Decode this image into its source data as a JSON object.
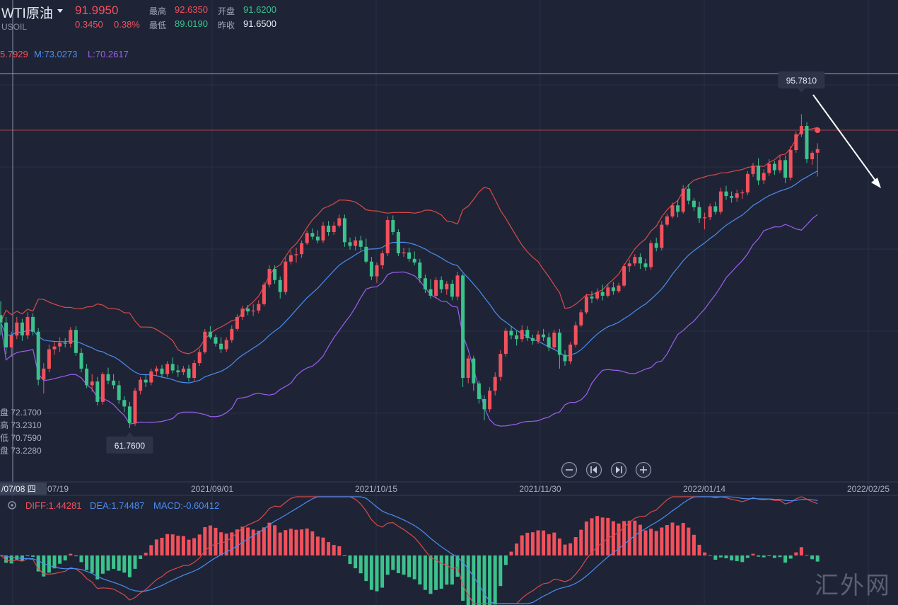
{
  "header": {
    "symbol": "WTI原油",
    "code": "USOIL",
    "last": "91.9950",
    "change": "0.3450",
    "change_pct": "0.38%",
    "high_label": "最高",
    "high": "92.6350",
    "open_label": "开盘",
    "open": "91.6200",
    "low_label": "最低",
    "low": "89.0190",
    "prev_label": "昨收",
    "prev_close": "91.6500"
  },
  "indicator": {
    "upper": "5.7929",
    "middle": "M:73.0273",
    "lower": "L:70.2617"
  },
  "crosshair": {
    "date": "/07/08 四",
    "open": "盘 72.1700",
    "high": "高 73.2310",
    "low": "低 70.7590",
    "close": "盘 73.2280"
  },
  "annotations": {
    "max": "95.7810",
    "min": "61.7600"
  },
  "macd_legend": {
    "diff": "DIFF:1.44281",
    "dea": "DEA:1.74487",
    "macd": "MACD:-0.60412"
  },
  "watermark": "汇外网",
  "colors": {
    "up": "#f2515c",
    "down": "#3cc28c",
    "mid": "#4c8df0",
    "lower": "#9d5ff0",
    "upper": "#d94a4a",
    "bg": "#1e2436"
  },
  "chart_data": {
    "type": "candlestick",
    "x_tick_labels": [
      "07/19",
      "2021/09/01",
      "2021/10/15",
      "2021/11/30",
      "2022/01/14",
      "2022/02/25"
    ],
    "candles_ohlc": [
      [
        74.0,
        75.5,
        71.8,
        73.2
      ],
      [
        73.2,
        73.8,
        69.8,
        70.5
      ],
      [
        70.5,
        72.2,
        69.5,
        71.8
      ],
      [
        71.8,
        73.8,
        71.4,
        73.2
      ],
      [
        73.2,
        73.6,
        71.2,
        71.8
      ],
      [
        71.8,
        74.3,
        71.4,
        73.8
      ],
      [
        73.8,
        74.2,
        71.8,
        72.2
      ],
      [
        72.2,
        72.6,
        66.4,
        67.0
      ],
      [
        67.0,
        68.8,
        65.5,
        68.2
      ],
      [
        68.2,
        70.8,
        67.8,
        70.3
      ],
      [
        70.3,
        71.2,
        69.7,
        70.6
      ],
      [
        70.6,
        71.6,
        70.0,
        71.0
      ],
      [
        71.0,
        71.5,
        70.5,
        70.9
      ],
      [
        70.9,
        72.7,
        70.5,
        72.4
      ],
      [
        72.4,
        72.8,
        69.6,
        69.9
      ],
      [
        69.9,
        70.4,
        67.8,
        68.2
      ],
      [
        68.2,
        68.7,
        66.1,
        66.4
      ],
      [
        66.4,
        67.6,
        65.7,
        66.8
      ],
      [
        66.8,
        67.3,
        64.2,
        64.6
      ],
      [
        64.6,
        67.8,
        64.3,
        67.6
      ],
      [
        67.6,
        68.3,
        66.5,
        66.9
      ],
      [
        66.9,
        67.6,
        66.0,
        66.4
      ],
      [
        66.4,
        66.9,
        64.4,
        64.8
      ],
      [
        64.8,
        65.2,
        63.5,
        64.1
      ],
      [
        64.1,
        64.6,
        61.76,
        62.3
      ],
      [
        62.3,
        66.1,
        62.0,
        65.8
      ],
      [
        65.8,
        67.3,
        65.4,
        67.0
      ],
      [
        67.0,
        67.5,
        66.2,
        66.7
      ],
      [
        66.7,
        68.2,
        66.4,
        67.9
      ],
      [
        67.9,
        68.5,
        67.4,
        68.2
      ],
      [
        68.2,
        68.6,
        67.3,
        67.6
      ],
      [
        67.6,
        69.0,
        67.3,
        68.7
      ],
      [
        68.7,
        69.4,
        67.7,
        68.0
      ],
      [
        68.0,
        68.6,
        67.3,
        67.8
      ],
      [
        67.8,
        68.5,
        67.5,
        68.2
      ],
      [
        68.2,
        68.6,
        66.8,
        67.2
      ],
      [
        67.2,
        69.1,
        66.9,
        68.8
      ],
      [
        68.8,
        70.3,
        68.5,
        70.0
      ],
      [
        70.0,
        72.5,
        69.8,
        72.2
      ],
      [
        72.2,
        72.8,
        71.4,
        71.6
      ],
      [
        71.6,
        71.9,
        70.6,
        70.9
      ],
      [
        70.9,
        71.6,
        69.9,
        70.3
      ],
      [
        70.3,
        71.6,
        70.0,
        71.3
      ],
      [
        71.3,
        72.9,
        71.0,
        72.5
      ],
      [
        72.5,
        74.1,
        72.3,
        73.8
      ],
      [
        73.8,
        75.0,
        73.5,
        74.7
      ],
      [
        74.7,
        75.1,
        74.0,
        74.4
      ],
      [
        74.4,
        75.2,
        73.9,
        74.5
      ],
      [
        74.5,
        75.6,
        74.2,
        75.2
      ],
      [
        75.2,
        77.6,
        75.0,
        77.3
      ],
      [
        77.3,
        79.4,
        77.0,
        79.0
      ],
      [
        79.0,
        79.4,
        77.4,
        77.8
      ],
      [
        77.8,
        78.2,
        75.8,
        76.5
      ],
      [
        76.5,
        80.2,
        76.2,
        79.8
      ],
      [
        79.8,
        81.0,
        79.5,
        80.5
      ],
      [
        80.5,
        81.3,
        79.7,
        80.6
      ],
      [
        80.6,
        82.1,
        80.2,
        81.8
      ],
      [
        81.8,
        83.2,
        81.6,
        82.9
      ],
      [
        82.9,
        83.4,
        82.2,
        82.5
      ],
      [
        82.5,
        83.2,
        81.8,
        82.1
      ],
      [
        82.1,
        84.1,
        81.8,
        83.7
      ],
      [
        83.7,
        84.2,
        82.6,
        83.0
      ],
      [
        83.0,
        84.1,
        82.7,
        83.7
      ],
      [
        83.7,
        84.9,
        83.5,
        84.5
      ],
      [
        84.5,
        84.9,
        81.4,
        81.9
      ],
      [
        81.9,
        82.4,
        81.1,
        81.5
      ],
      [
        81.5,
        82.5,
        81.0,
        82.1
      ],
      [
        82.1,
        82.6,
        81.0,
        81.4
      ],
      [
        81.4,
        82.3,
        79.6,
        79.8
      ],
      [
        79.8,
        80.3,
        77.8,
        78.2
      ],
      [
        78.2,
        79.7,
        77.5,
        79.4
      ],
      [
        79.4,
        81.0,
        79.0,
        80.7
      ],
      [
        80.7,
        84.7,
        80.4,
        84.3
      ],
      [
        84.3,
        84.8,
        82.7,
        83.0
      ],
      [
        83.0,
        83.3,
        80.4,
        80.7
      ],
      [
        80.7,
        81.3,
        80.3,
        80.8
      ],
      [
        80.8,
        81.3,
        79.8,
        80.1
      ],
      [
        80.1,
        80.9,
        79.4,
        79.7
      ],
      [
        79.7,
        80.1,
        77.5,
        78.0
      ],
      [
        78.0,
        78.4,
        76.4,
        76.8
      ],
      [
        76.8,
        77.9,
        75.8,
        76.1
      ],
      [
        76.1,
        78.1,
        75.8,
        77.8
      ],
      [
        77.8,
        78.2,
        76.4,
        76.8
      ],
      [
        76.8,
        77.7,
        76.2,
        77.4
      ],
      [
        77.4,
        77.8,
        75.6,
        76.0
      ],
      [
        76.0,
        78.7,
        75.6,
        78.3
      ],
      [
        78.3,
        78.5,
        66.2,
        67.2
      ],
      [
        67.2,
        69.6,
        66.6,
        69.3
      ],
      [
        69.3,
        69.6,
        65.8,
        66.6
      ],
      [
        66.6,
        66.9,
        64.4,
        64.9
      ],
      [
        64.9,
        65.3,
        62.6,
        63.8
      ],
      [
        63.8,
        66.2,
        63.5,
        65.8
      ],
      [
        65.8,
        67.8,
        65.3,
        67.3
      ],
      [
        67.3,
        70.2,
        66.9,
        69.8
      ],
      [
        69.8,
        72.6,
        69.5,
        72.3
      ],
      [
        72.3,
        72.8,
        71.4,
        71.8
      ],
      [
        71.8,
        72.3,
        70.7,
        71.4
      ],
      [
        71.4,
        72.9,
        71.1,
        72.4
      ],
      [
        72.4,
        72.8,
        71.2,
        71.5
      ],
      [
        71.5,
        71.9,
        70.8,
        71.2
      ],
      [
        71.2,
        72.3,
        70.9,
        71.9
      ],
      [
        71.9,
        72.5,
        71.2,
        71.6
      ],
      [
        71.6,
        72.1,
        70.1,
        70.5
      ],
      [
        70.5,
        72.4,
        70.2,
        72.1
      ],
      [
        72.1,
        72.5,
        68.2,
        69.7
      ],
      [
        69.7,
        70.2,
        68.5,
        69.0
      ],
      [
        69.0,
        71.1,
        68.7,
        70.8
      ],
      [
        70.8,
        73.3,
        70.5,
        72.9
      ],
      [
        72.9,
        74.6,
        72.7,
        74.3
      ],
      [
        74.3,
        76.3,
        74.1,
        76.0
      ],
      [
        76.0,
        76.6,
        75.3,
        75.8
      ],
      [
        75.8,
        76.9,
        75.6,
        76.5
      ],
      [
        76.5,
        77.3,
        75.6,
        76.1
      ],
      [
        76.1,
        77.3,
        75.9,
        77.0
      ],
      [
        77.0,
        77.6,
        76.2,
        76.6
      ],
      [
        76.6,
        77.5,
        76.4,
        77.2
      ],
      [
        77.2,
        79.6,
        77.0,
        79.3
      ],
      [
        79.3,
        80.0,
        78.7,
        79.6
      ],
      [
        79.6,
        80.6,
        79.3,
        80.3
      ],
      [
        80.3,
        80.7,
        79.0,
        79.6
      ],
      [
        79.6,
        80.1,
        78.8,
        79.2
      ],
      [
        79.2,
        82.1,
        78.9,
        81.8
      ],
      [
        81.8,
        82.4,
        80.9,
        81.3
      ],
      [
        81.3,
        84.2,
        81.0,
        83.8
      ],
      [
        83.8,
        85.0,
        83.6,
        84.7
      ],
      [
        84.7,
        86.2,
        84.5,
        85.9
      ],
      [
        85.9,
        86.5,
        84.6,
        85.2
      ],
      [
        85.2,
        88.1,
        85.0,
        87.7
      ],
      [
        87.7,
        88.2,
        86.0,
        86.4
      ],
      [
        86.4,
        86.7,
        85.3,
        85.7
      ],
      [
        85.7,
        86.3,
        84.0,
        84.5
      ],
      [
        84.5,
        85.1,
        83.3,
        84.6
      ],
      [
        84.6,
        86.1,
        84.3,
        85.8
      ],
      [
        85.8,
        86.3,
        84.9,
        85.2
      ],
      [
        85.2,
        87.8,
        84.9,
        87.4
      ],
      [
        87.4,
        88.0,
        86.5,
        86.9
      ],
      [
        86.9,
        87.4,
        86.2,
        86.7
      ],
      [
        86.7,
        87.6,
        86.3,
        87.2
      ],
      [
        87.2,
        87.6,
        86.6,
        87.3
      ],
      [
        87.3,
        89.6,
        87.0,
        89.3
      ],
      [
        89.3,
        90.5,
        89.0,
        90.2
      ],
      [
        90.2,
        91.0,
        88.1,
        88.6
      ],
      [
        88.6,
        89.8,
        88.2,
        89.4
      ],
      [
        89.4,
        90.9,
        89.1,
        90.4
      ],
      [
        90.4,
        90.7,
        89.2,
        89.7
      ],
      [
        89.7,
        91.3,
        89.4,
        90.8
      ],
      [
        90.8,
        91.3,
        88.3,
        88.9
      ],
      [
        88.9,
        92.3,
        88.6,
        91.9
      ],
      [
        91.9,
        93.9,
        91.6,
        93.6
      ],
      [
        93.6,
        95.78,
        93.3,
        94.5
      ],
      [
        94.5,
        94.9,
        90.5,
        90.9
      ],
      [
        90.9,
        91.8,
        90.3,
        91.6
      ],
      [
        91.6,
        92.635,
        89.019,
        91.995
      ]
    ],
    "bollinger": {
      "upper_label": "5.7929",
      "middle_label": "M:73.0273",
      "lower_label": "L:70.2617"
    },
    "macd": {
      "diff": "DIFF:1.44281",
      "dea": "DEA:1.74487",
      "macd": "MACD:-0.60412"
    },
    "max_label": "95.7810",
    "min_label": "61.7600",
    "grid": true,
    "ylim": [
      56.0,
      100.87
    ]
  }
}
